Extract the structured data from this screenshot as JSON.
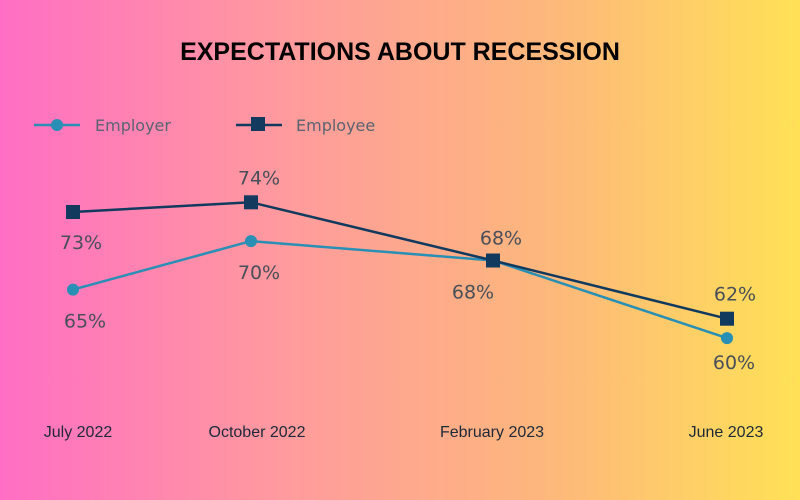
{
  "chart_data": {
    "type": "line",
    "title": "EXPECTATIONS ABOUT RECESSION",
    "categories": [
      "July 2022",
      "October 2022",
      "February 2023",
      "June 2023"
    ],
    "series": [
      {
        "name": "Employer",
        "values": [
          65,
          70,
          68,
          60
        ],
        "labels": [
          "65%",
          "70%",
          "68%",
          "60%"
        ],
        "color": "#2a8fb4",
        "marker": "circle"
      },
      {
        "name": "Employee",
        "values": [
          73,
          74,
          68,
          62
        ],
        "labels": [
          "73%",
          "74%",
          "68%",
          "62%"
        ],
        "color": "#123a5e",
        "marker": "square"
      }
    ],
    "ylim": [
      56,
      80
    ],
    "grid": false,
    "legend": "top-left"
  }
}
